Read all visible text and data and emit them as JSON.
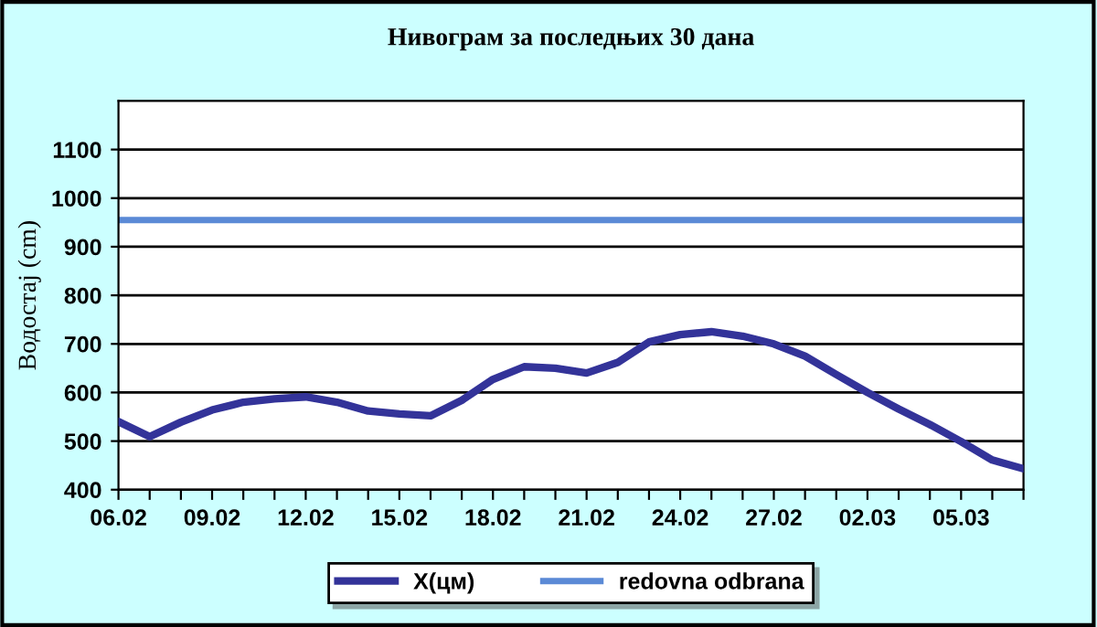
{
  "chart_data": {
    "type": "line",
    "title": "Нивограм за последњих 30 дана",
    "ylabel": "Водостај (cm)",
    "categories": [
      "06.02",
      null,
      null,
      "09.02",
      null,
      null,
      "12.02",
      null,
      null,
      "15.02",
      null,
      null,
      "18.02",
      null,
      null,
      "21.02",
      null,
      null,
      "24.02",
      null,
      null,
      "27.02",
      null,
      null,
      "02.03",
      null,
      null,
      "05.03",
      null,
      null
    ],
    "series": [
      {
        "name": "X(цм)",
        "color": "#333399",
        "values": [
          540,
          509,
          539,
          564,
          580,
          587,
          591,
          580,
          562,
          556,
          552,
          584,
          627,
          653,
          650,
          640,
          662,
          704,
          719,
          725,
          716,
          700,
          675,
          637,
          600,
          566,
          534,
          499,
          461,
          443
        ]
      }
    ],
    "ref_lines": [
      {
        "axis": "y",
        "value": 955,
        "label": "redovna odbrana",
        "color": "#5b8ad6"
      }
    ],
    "ylim": [
      400,
      1200
    ],
    "yticks": [
      400,
      500,
      600,
      700,
      800,
      900,
      1000,
      1100
    ],
    "grid": "y",
    "legend": "bottom",
    "marker": "none",
    "line_style": "solid"
  }
}
